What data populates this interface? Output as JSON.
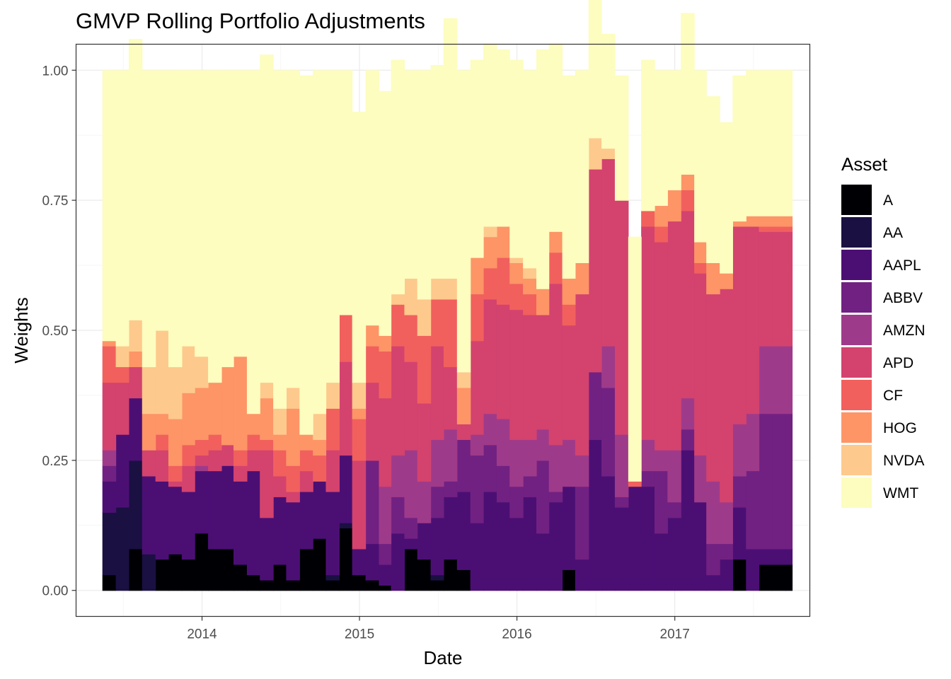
{
  "chart_data": {
    "type": "area",
    "subtype": "stacked-step",
    "title": "GMVP Rolling Portfolio Adjustments",
    "xlabel": "Date",
    "ylabel": "Weights",
    "xlim": [
      "2013-03-15",
      "2017-11-10"
    ],
    "ylim": [
      -0.05,
      1.05
    ],
    "x_ticks": [
      {
        "date": "2014-01-01",
        "label": "2014"
      },
      {
        "date": "2015-01-01",
        "label": "2015"
      },
      {
        "date": "2016-01-01",
        "label": "2016"
      },
      {
        "date": "2017-01-01",
        "label": "2017"
      }
    ],
    "y_ticks": [
      {
        "value": 0.0,
        "label": "0.00"
      },
      {
        "value": 0.25,
        "label": "0.25"
      },
      {
        "value": 0.5,
        "label": "0.50"
      },
      {
        "value": 0.75,
        "label": "0.75"
      },
      {
        "value": 1.0,
        "label": "1.00"
      }
    ],
    "grid": true,
    "legend": {
      "title": "Asset",
      "placement": "right"
    },
    "x": [
      "2013-05-15",
      "2013-06-15",
      "2013-07-15",
      "2013-08-15",
      "2013-09-15",
      "2013-10-15",
      "2013-11-15",
      "2013-12-15",
      "2014-01-15",
      "2014-02-15",
      "2014-03-15",
      "2014-04-15",
      "2014-05-15",
      "2014-06-15",
      "2014-07-15",
      "2014-08-15",
      "2014-09-15",
      "2014-10-15",
      "2014-11-15",
      "2014-12-15",
      "2015-01-15",
      "2015-02-15",
      "2015-03-15",
      "2015-04-15",
      "2015-05-15",
      "2015-06-15",
      "2015-07-15",
      "2015-08-15",
      "2015-09-15",
      "2015-10-15",
      "2015-11-15",
      "2015-12-15",
      "2016-01-15",
      "2016-02-15",
      "2016-03-15",
      "2016-04-15",
      "2016-05-15",
      "2016-06-15",
      "2016-07-15",
      "2016-08-15",
      "2016-09-15",
      "2016-10-15",
      "2016-11-15",
      "2016-12-15",
      "2017-01-15",
      "2017-02-15",
      "2017-03-15",
      "2017-04-15",
      "2017-05-15",
      "2017-06-15",
      "2017-07-15",
      "2017-08-15",
      "2017-09-15"
    ],
    "x_end": "2017-09-30",
    "series": [
      {
        "name": "WMT",
        "color": "#FCFDBF",
        "values": [
          0.52,
          0.53,
          0.54,
          0.57,
          0.5,
          0.57,
          0.53,
          0.55,
          0.6,
          0.57,
          0.55,
          0.66,
          0.63,
          0.65,
          0.61,
          0.69,
          0.66,
          0.6,
          0.47,
          0.52,
          0.49,
          0.47,
          0.45,
          0.4,
          0.44,
          0.41,
          0.5,
          0.58,
          0.38,
          0.35,
          0.34,
          0.38,
          0.38,
          0.46,
          0.36,
          0.39,
          0.37,
          0.31,
          0.22,
          0.24,
          0.47,
          0.29,
          0.26,
          0.23,
          0.31,
          0.33,
          0.32,
          0.29,
          0.28,
          0.28,
          0.28,
          0.28,
          0.28
        ]
      },
      {
        "name": "NVDA",
        "color": "#FEC98D",
        "values": [
          0.0,
          0.04,
          0.06,
          0.09,
          0.16,
          0.1,
          0.09,
          0.06,
          0.0,
          0.0,
          0.0,
          0.0,
          0.03,
          0.05,
          0.04,
          0.0,
          0.05,
          0.05,
          0.0,
          0.05,
          0.0,
          0.0,
          0.02,
          0.07,
          0.07,
          0.04,
          0.04,
          0.03,
          0.0,
          0.02,
          0.0,
          0.01,
          0.02,
          0.0,
          0.0,
          0.0,
          0.0,
          0.06,
          0.02,
          0.0,
          0.0,
          0.0,
          0.0,
          0.0,
          0.0,
          0.0,
          0.0,
          0.0,
          0.0,
          0.0,
          0.0,
          0.0,
          0.0
        ]
      },
      {
        "name": "HOG",
        "color": "#FD9567",
        "values": [
          0.01,
          0.0,
          0.03,
          0.07,
          0.04,
          0.09,
          0.1,
          0.1,
          0.1,
          0.15,
          0.18,
          0.04,
          0.08,
          0.03,
          0.11,
          0.03,
          0.03,
          0.0,
          0.0,
          0.02,
          0.04,
          0.03,
          0.0,
          0.0,
          0.0,
          0.0,
          0.0,
          0.07,
          0.07,
          0.06,
          0.06,
          0.04,
          0.03,
          0.05,
          0.04,
          0.05,
          0.06,
          0.0,
          0.0,
          0.0,
          0.0,
          0.0,
          0.04,
          0.06,
          0.03,
          0.04,
          0.06,
          0.03,
          0.01,
          0.02,
          0.02,
          0.02,
          0.02
        ]
      },
      {
        "name": "CF",
        "color": "#F1605D",
        "values": [
          0.07,
          0.03,
          0.0,
          0.0,
          0.03,
          0.03,
          0.04,
          0.03,
          0.03,
          0.0,
          0.03,
          0.03,
          0.02,
          0.05,
          0.05,
          0.04,
          0.05,
          0.08,
          0.09,
          0.08,
          0.07,
          0.09,
          0.08,
          0.09,
          0.13,
          0.09,
          0.13,
          0.0,
          0.09,
          0.06,
          0.09,
          0.05,
          0.04,
          0.0,
          0.06,
          0.04,
          0.0,
          0.0,
          0.0,
          0.0,
          0.01,
          0.03,
          0.03,
          0.0,
          0.04,
          0.02,
          0.0,
          0.0,
          0.0,
          0.0,
          0.01,
          0.01,
          0.01
        ]
      },
      {
        "name": "APD",
        "color": "#D3436E",
        "values": [
          0.13,
          0.1,
          0.06,
          0.05,
          0.06,
          0.01,
          0.05,
          0.02,
          0.04,
          0.04,
          0.03,
          0.04,
          0.13,
          0.04,
          0.02,
          0.04,
          0.0,
          0.08,
          0.18,
          0.17,
          0.15,
          0.17,
          0.21,
          0.17,
          0.15,
          0.18,
          0.12,
          0.03,
          0.18,
          0.22,
          0.22,
          0.25,
          0.24,
          0.22,
          0.31,
          0.22,
          0.31,
          0.39,
          0.36,
          0.45,
          0.0,
          0.41,
          0.4,
          0.44,
          0.36,
          0.35,
          0.36,
          0.41,
          0.38,
          0.36,
          0.22,
          0.22,
          0.22
        ]
      },
      {
        "name": "AMZN",
        "color": "#9E3A8A",
        "values": [
          0.03,
          0.0,
          0.0,
          0.0,
          0.0,
          0.0,
          0.0,
          0.01,
          0.0,
          0.0,
          0.0,
          0.0,
          0.0,
          0.0,
          0.0,
          0.0,
          0.0,
          0.0,
          0.0,
          0.0,
          0.0,
          0.11,
          0.08,
          0.13,
          0.08,
          0.09,
          0.1,
          0.0,
          0.04,
          0.06,
          0.09,
          0.09,
          0.07,
          0.06,
          0.09,
          0.09,
          0.06,
          0.0,
          0.08,
          0.12,
          0.0,
          0.06,
          0.04,
          0.1,
          0.06,
          0.09,
          0.12,
          0.08,
          0.1,
          0.11,
          0.13,
          0.13,
          0.13
        ]
      },
      {
        "name": "ABBV",
        "color": "#712181",
        "values": [
          0.03,
          0.0,
          0.0,
          0.0,
          0.0,
          0.0,
          0.0,
          0.0,
          0.0,
          0.0,
          0.0,
          0.0,
          0.0,
          0.0,
          0.0,
          0.0,
          0.0,
          0.0,
          0.0,
          0.0,
          0.16,
          0.04,
          0.07,
          0.04,
          0.0,
          0.06,
          0.03,
          0.1,
          0.13,
          0.09,
          0.07,
          0.06,
          0.04,
          0.14,
          0.02,
          0.0,
          0.14,
          0.13,
          0.17,
          0.02,
          0.0,
          0.03,
          0.12,
          0.03,
          0.04,
          0.0,
          0.06,
          0.03,
          0.06,
          0.15,
          0.26,
          0.26,
          0.26
        ]
      },
      {
        "name": "AAPL",
        "color": "#4B0F74",
        "values": [
          0.06,
          0.14,
          0.12,
          0.15,
          0.15,
          0.13,
          0.13,
          0.12,
          0.15,
          0.16,
          0.16,
          0.2,
          0.12,
          0.13,
          0.15,
          0.11,
          0.11,
          0.16,
          0.13,
          0.05,
          0.07,
          0.04,
          0.11,
          0.02,
          0.07,
          0.11,
          0.12,
          0.15,
          0.13,
          0.19,
          0.17,
          0.14,
          0.18,
          0.11,
          0.17,
          0.16,
          0.06,
          0.29,
          0.22,
          0.16,
          0.2,
          0.2,
          0.11,
          0.14,
          0.27,
          0.17,
          0.03,
          0.06,
          0.1,
          0.08,
          0.03,
          0.03,
          0.03
        ]
      },
      {
        "name": "AA",
        "color": "#1A1042",
        "values": [
          0.12,
          0.16,
          0.17,
          0.07,
          0.0,
          0.0,
          0.0,
          0.0,
          0.0,
          0.0,
          0.0,
          0.0,
          0.0,
          0.0,
          0.0,
          0.0,
          0.0,
          0.01,
          0.01,
          0.0,
          0.0,
          0.0,
          0.0,
          0.0,
          0.0,
          0.01,
          0.0,
          0.0,
          0.0,
          0.0,
          0.0,
          0.0,
          0.0,
          0.0,
          0.0,
          0.0,
          0.0,
          0.0,
          0.0,
          0.0,
          0.0,
          0.0,
          0.0,
          0.0,
          0.0,
          0.0,
          0.0,
          0.0,
          0.0,
          0.0,
          0.0,
          0.0,
          0.0
        ]
      },
      {
        "name": "A",
        "color": "#000004",
        "values": [
          0.03,
          0.0,
          0.08,
          0.0,
          0.06,
          0.07,
          0.06,
          0.11,
          0.08,
          0.08,
          0.05,
          0.03,
          0.02,
          0.05,
          0.02,
          0.08,
          0.1,
          0.02,
          0.12,
          0.03,
          0.02,
          0.01,
          0.0,
          0.08,
          0.06,
          0.02,
          0.06,
          0.04,
          0.0,
          0.0,
          0.0,
          0.0,
          0.0,
          0.0,
          0.0,
          0.04,
          0.0,
          0.0,
          0.0,
          0.0,
          0.0,
          0.0,
          0.0,
          0.0,
          0.0,
          0.0,
          0.0,
          0.0,
          0.06,
          0.0,
          0.05,
          0.05,
          0.05
        ]
      }
    ]
  }
}
